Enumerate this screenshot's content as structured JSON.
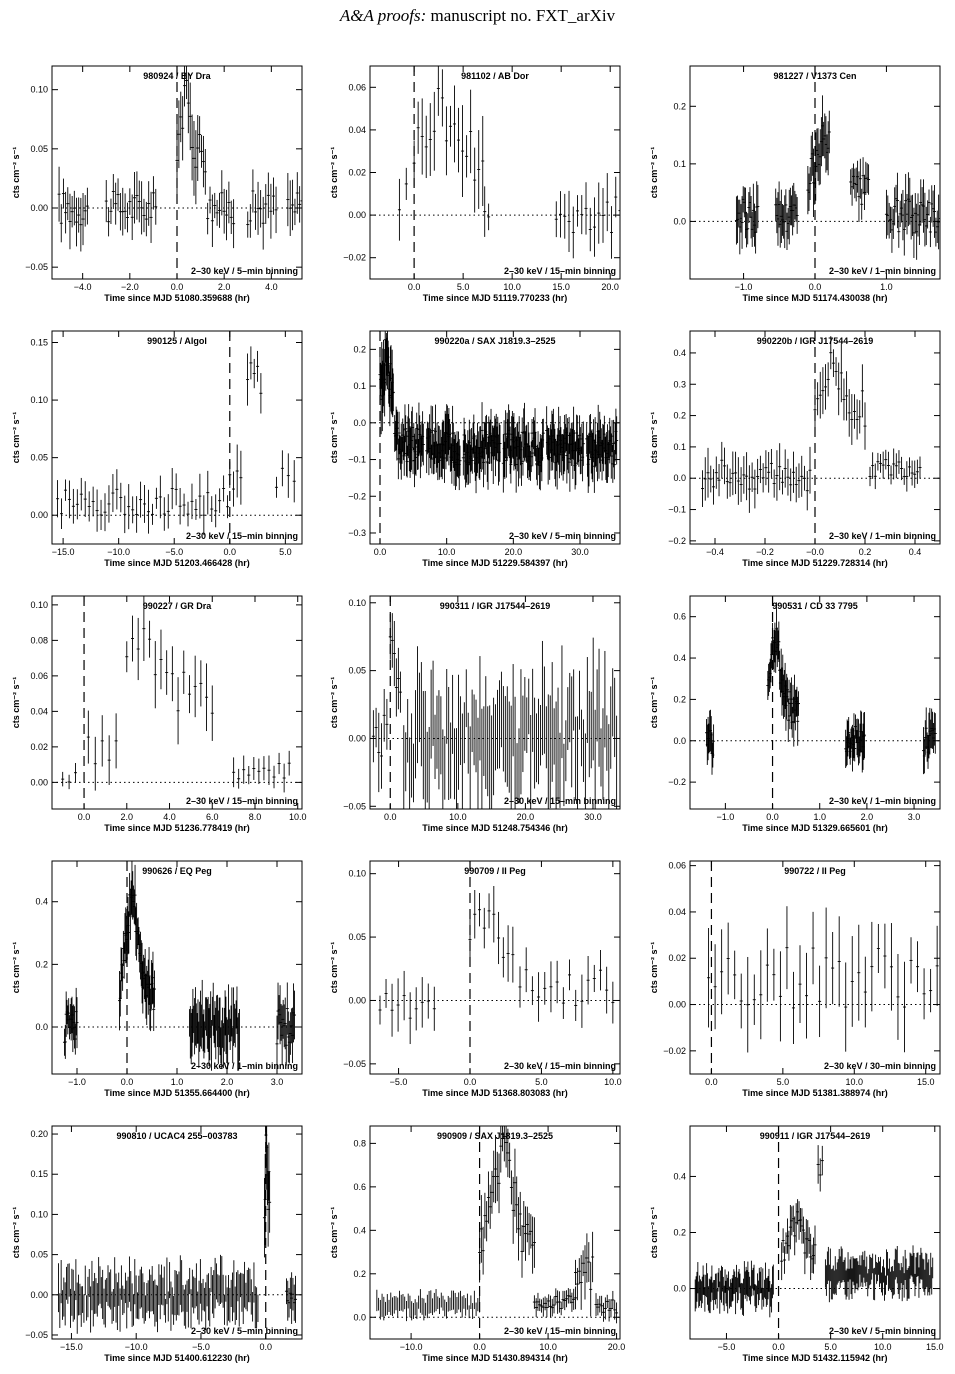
{
  "header": {
    "italic": "A&A proofs:",
    "rest": " manuscript no. FXT_arXiv"
  },
  "chart_data": [
    {
      "type": "line",
      "title": "980924 / BY Dra",
      "xlabel": "Time since MJD 51080.359688 (hr)",
      "ylabel": "cts cm⁻² s⁻¹",
      "band": "2–30 keV / 5–min binning",
      "xlim": [
        -5.3,
        5.3
      ],
      "ylim": [
        -0.06,
        0.12
      ],
      "xticks": [
        -4,
        -2,
        0,
        2,
        4
      ],
      "xtick_labels": [
        "−4.0",
        "−2.0",
        "0.0",
        "2.0",
        "4.0"
      ],
      "yticks": [
        -0.05,
        0,
        0.05,
        0.1
      ],
      "ytick_labels": [
        "−0.05",
        "0.00",
        "0.05",
        "0.10"
      ],
      "vline": 0,
      "hline": 0,
      "segments": [
        {
          "x0": -5.0,
          "x1": -3.8,
          "n": 14,
          "lvl": 0.0,
          "amp": 0.015
        },
        {
          "x0": -3.0,
          "x1": -1.7,
          "n": 14,
          "lvl": 0.0,
          "amp": 0.014
        },
        {
          "x0": -1.6,
          "x1": -0.9,
          "n": 8,
          "lvl": 0.0,
          "amp": 0.014
        },
        {
          "x0": 0.0,
          "x1": 1.2,
          "n": 16,
          "lvl": 0.05,
          "amp": 0.02,
          "peak": [
            0.35,
            0.09
          ]
        },
        {
          "x0": 1.3,
          "x1": 2.4,
          "n": 12,
          "lvl": 0.0,
          "amp": 0.014
        },
        {
          "x0": 3.0,
          "x1": 4.2,
          "n": 12,
          "lvl": 0.0,
          "amp": 0.015
        },
        {
          "x0": 4.7,
          "x1": 5.3,
          "n": 7,
          "lvl": 0.0,
          "amp": 0.015
        }
      ]
    },
    {
      "type": "line",
      "title": "981102 / AB Dor",
      "xlabel": "Time since MJD 51119.770233 (hr)",
      "ylabel": "cts cm⁻² s⁻¹",
      "band": "2–30 keV / 15–min binning",
      "xlim": [
        -4.5,
        21
      ],
      "ylim": [
        -0.03,
        0.07
      ],
      "xticks": [
        0,
        5,
        10,
        15,
        20
      ],
      "xtick_labels": [
        "0.0",
        "5.0",
        "10.0",
        "15.0",
        "20.0"
      ],
      "yticks": [
        -0.02,
        0,
        0.02,
        0.04,
        0.06
      ],
      "ytick_labels": [
        "−0.02",
        "0.00",
        "0.02",
        "0.04",
        "0.06"
      ],
      "vline": 0,
      "hline": 0,
      "segments": [
        {
          "x0": -1.5,
          "x1": -0.8,
          "n": 2,
          "lvl": 0.01,
          "amp": 0.01
        },
        {
          "x0": 0.0,
          "x1": 7.0,
          "n": 18,
          "lvl": 0.03,
          "amp": 0.014,
          "peak": [
            2.6,
            0.05
          ]
        },
        {
          "x0": 7.2,
          "x1": 7.6,
          "n": 2,
          "lvl": 0.0,
          "amp": 0.008
        },
        {
          "x0": 14.5,
          "x1": 21.0,
          "n": 16,
          "lvl": 0.0,
          "amp": 0.01
        }
      ]
    },
    {
      "type": "line",
      "title": "981227 / V1373 Cen",
      "xlabel": "Time since MJD 51174.430038 (hr)",
      "ylabel": "cts cm⁻² s⁻¹",
      "band": "2–30 keV / 1–min binning",
      "xlim": [
        -1.75,
        1.75
      ],
      "ylim": [
        -0.1,
        0.27
      ],
      "xticks": [
        -1,
        0,
        1
      ],
      "xtick_labels": [
        "−1.0",
        "0.0",
        "1.0"
      ],
      "yticks": [
        0,
        0.1,
        0.2
      ],
      "ytick_labels": [
        "0.0",
        "0.1",
        "0.2"
      ],
      "vline": 0,
      "hline": 0,
      "segments": [
        {
          "x0": -1.1,
          "x1": -0.8,
          "n": 20,
          "lvl": 0.01,
          "amp": 0.03
        },
        {
          "x0": -0.55,
          "x1": -0.25,
          "n": 20,
          "lvl": 0.01,
          "amp": 0.03
        },
        {
          "x0": -0.1,
          "x1": 0.2,
          "n": 20,
          "lvl": 0.09,
          "amp": 0.04,
          "peak": [
            0.15,
            0.15
          ]
        },
        {
          "x0": 0.5,
          "x1": 0.75,
          "n": 14,
          "lvl": 0.05,
          "amp": 0.03
        },
        {
          "x0": 1.0,
          "x1": 1.75,
          "n": 40,
          "lvl": 0.01,
          "amp": 0.03
        }
      ]
    },
    {
      "type": "line",
      "title": "990125 / Algol",
      "xlabel": "Time since MJD 51203.466428 (hr)",
      "ylabel": "cts cm⁻² s⁻¹",
      "band": "2–30 keV / 15–min binning",
      "xlim": [
        -16,
        6.5
      ],
      "ylim": [
        -0.025,
        0.16
      ],
      "xticks": [
        -15,
        -10,
        -5,
        0,
        5
      ],
      "xtick_labels": [
        "−15.0",
        "−10.0",
        "−5.0",
        "0.0",
        "5.0"
      ],
      "yticks": [
        0,
        0.05,
        0.1,
        0.15
      ],
      "ytick_labels": [
        "0.00",
        "0.05",
        "0.10",
        "0.15"
      ],
      "vline": 0,
      "hline": 0,
      "segments": [
        {
          "x0": -15.5,
          "x1": -0.2,
          "n": 44,
          "lvl": 0.012,
          "amp": 0.012
        },
        {
          "x0": 0.0,
          "x1": 1.0,
          "n": 4,
          "lvl": 0.03,
          "amp": 0.015
        },
        {
          "x0": 1.6,
          "x1": 2.8,
          "n": 5,
          "lvl": 0.12,
          "amp": 0.015
        },
        {
          "x0": 4.2,
          "x1": 5.8,
          "n": 4,
          "lvl": 0.035,
          "amp": 0.012
        }
      ]
    },
    {
      "type": "line",
      "title": "990220a / SAX J1819.3–2525",
      "xlabel": "Time since MJD 51229.584397 (hr)",
      "ylabel": "cts cm⁻² s⁻¹",
      "band": "2–30 keV / 5–min binning",
      "xlim": [
        -1.5,
        36
      ],
      "ylim": [
        -0.33,
        0.25
      ],
      "xticks": [
        0,
        10,
        20,
        30
      ],
      "xtick_labels": [
        "0.0",
        "10.0",
        "20.0",
        "30.0"
      ],
      "yticks": [
        -0.3,
        -0.2,
        -0.1,
        0,
        0.1,
        0.2
      ],
      "ytick_labels": [
        "−0.3",
        "−0.2",
        "−0.1",
        "0.0",
        "0.1",
        "0.2"
      ],
      "vline": 0,
      "hline": 0,
      "segments": [
        {
          "x0": 0.0,
          "x1": 2.0,
          "n": 24,
          "lvl": 0.09,
          "amp": 0.06,
          "peak": [
            1.0,
            0.2
          ]
        },
        {
          "x0": 2.2,
          "x1": 6.5,
          "n": 40,
          "lvl": -0.06,
          "amp": 0.05
        },
        {
          "x0": 7.0,
          "x1": 12.0,
          "n": 46,
          "lvl": -0.07,
          "amp": 0.05
        },
        {
          "x0": 12.5,
          "x1": 18.0,
          "n": 50,
          "lvl": -0.07,
          "amp": 0.05
        },
        {
          "x0": 18.5,
          "x1": 24.5,
          "n": 54,
          "lvl": -0.07,
          "amp": 0.05
        },
        {
          "x0": 25.0,
          "x1": 30.5,
          "n": 50,
          "lvl": -0.07,
          "amp": 0.05
        },
        {
          "x0": 31.0,
          "x1": 35.5,
          "n": 40,
          "lvl": -0.07,
          "amp": 0.05
        }
      ]
    },
    {
      "type": "line",
      "title": "990220b / IGR J17544–2619",
      "xlabel": "Time since MJD 51229.728314 (hr)",
      "ylabel": "cts cm⁻² s⁻¹",
      "band": "2–30 keV / 1–min binning",
      "xlim": [
        -0.5,
        0.5
      ],
      "ylim": [
        -0.21,
        0.47
      ],
      "xticks": [
        -0.4,
        -0.2,
        0,
        0.2,
        0.4
      ],
      "xtick_labels": [
        "−0.4",
        "−0.2",
        "−0.0",
        "0.2",
        "0.4"
      ],
      "yticks": [
        -0.2,
        -0.1,
        0,
        0.1,
        0.2,
        0.3,
        0.4
      ],
      "ytick_labels": [
        "−0.2",
        "−0.1",
        "0.0",
        "0.1",
        "0.2",
        "0.3",
        "0.4"
      ],
      "vline": 0,
      "hline": 0,
      "segments": [
        {
          "x0": -0.45,
          "x1": -0.02,
          "n": 40,
          "lvl": 0.01,
          "amp": 0.05
        },
        {
          "x0": 0.0,
          "x1": 0.2,
          "n": 20,
          "lvl": 0.22,
          "amp": 0.06,
          "peak": [
            0.07,
            0.35
          ]
        },
        {
          "x0": 0.22,
          "x1": 0.42,
          "n": 20,
          "lvl": 0.03,
          "amp": 0.03
        }
      ]
    },
    {
      "type": "line",
      "title": "990227 / GR Dra",
      "xlabel": "Time since MJD 51236.778419 (hr)",
      "ylabel": "cts cm⁻² s⁻¹",
      "band": "2–30 keV / 15–min binning",
      "xlim": [
        -1.5,
        10.2
      ],
      "ylim": [
        -0.015,
        0.105
      ],
      "xticks": [
        0,
        2,
        4,
        6,
        8,
        10
      ],
      "xtick_labels": [
        "0.0",
        "2.0",
        "4.0",
        "6.0",
        "8.0",
        "10.0"
      ],
      "yticks": [
        0,
        0.02,
        0.04,
        0.06,
        0.08,
        0.1
      ],
      "ytick_labels": [
        "0.00",
        "0.02",
        "0.04",
        "0.06",
        "0.08",
        "0.10"
      ],
      "vline": 0,
      "hline": 0,
      "segments": [
        {
          "x0": -1.0,
          "x1": -0.4,
          "n": 3,
          "lvl": 0.003,
          "amp": 0.003
        },
        {
          "x0": 0.2,
          "x1": 1.5,
          "n": 5,
          "lvl": 0.02,
          "amp": 0.01
        },
        {
          "x0": 2.0,
          "x1": 6.0,
          "n": 16,
          "lvl": 0.05,
          "amp": 0.012,
          "peak": [
            2.6,
            0.08
          ]
        },
        {
          "x0": 7.0,
          "x1": 9.6,
          "n": 12,
          "lvl": 0.007,
          "amp": 0.005
        }
      ]
    },
    {
      "type": "line",
      "title": "990311 / IGR J17544–2619",
      "xlabel": "Time since MJD 51248.754346 (hr)",
      "ylabel": "cts cm⁻² s⁻¹",
      "band": "2–30 keV / 15–min binning",
      "xlim": [
        -3,
        34
      ],
      "ylim": [
        -0.052,
        0.105
      ],
      "xticks": [
        0,
        10,
        20,
        30
      ],
      "xtick_labels": [
        "0.0",
        "10.0",
        "20.0",
        "30.0"
      ],
      "yticks": [
        -0.05,
        0,
        0.05,
        0.1
      ],
      "ytick_labels": [
        "−0.05",
        "0.00",
        "0.05",
        "0.10"
      ],
      "vline": 0,
      "hline": 0,
      "segments": [
        {
          "x0": -2.5,
          "x1": -0.5,
          "n": 6,
          "lvl": 0.0,
          "amp": 0.02
        },
        {
          "x0": 0.0,
          "x1": 1.5,
          "n": 6,
          "lvl": 0.05,
          "amp": 0.02,
          "peak": [
            0.4,
            0.08
          ]
        },
        {
          "x0": 2.0,
          "x1": 33.5,
          "n": 110,
          "lvl": 0.0,
          "amp": 0.03
        }
      ]
    },
    {
      "type": "line",
      "title": "990531 / CD 33 7795",
      "xlabel": "Time since MJD 51329.665601 (hr)",
      "ylabel": "cts cm⁻² s⁻¹",
      "band": "2–30 keV / 1–min binning",
      "xlim": [
        -1.75,
        3.55
      ],
      "ylim": [
        -0.33,
        0.7
      ],
      "xticks": [
        -1,
        0,
        1,
        2,
        3
      ],
      "xtick_labels": [
        "−1.0",
        "0.0",
        "1.0",
        "2.0",
        "3.0"
      ],
      "yticks": [
        -0.2,
        0,
        0.2,
        0.4,
        0.6
      ],
      "ytick_labels": [
        "−0.2",
        "0.0",
        "0.2",
        "0.4",
        "0.6"
      ],
      "vline": 0,
      "hline": 0,
      "segments": [
        {
          "x0": -1.4,
          "x1": -1.25,
          "n": 10,
          "lvl": 0.0,
          "amp": 0.07
        },
        {
          "x0": -0.1,
          "x1": 0.55,
          "n": 40,
          "lvl": 0.15,
          "amp": 0.08,
          "peak": [
            0.05,
            0.5
          ]
        },
        {
          "x0": 1.55,
          "x1": 1.95,
          "n": 26,
          "lvl": 0.0,
          "amp": 0.07
        },
        {
          "x0": 3.2,
          "x1": 3.45,
          "n": 14,
          "lvl": 0.0,
          "amp": 0.08
        }
      ]
    },
    {
      "type": "line",
      "title": "990626 / EQ Peg",
      "xlabel": "Time since MJD 51355.664400 (hr)",
      "ylabel": "cts cm⁻² s⁻¹",
      "band": "2–30 keV / 1–min binning",
      "xlim": [
        -1.5,
        3.5
      ],
      "ylim": [
        -0.15,
        0.53
      ],
      "xticks": [
        -1,
        0,
        1,
        2,
        3
      ],
      "xtick_labels": [
        "−1.0",
        "0.0",
        "1.0",
        "2.0",
        "3.0"
      ],
      "yticks": [
        0,
        0.2,
        0.4
      ],
      "ytick_labels": [
        "0.0",
        "0.2",
        "0.4"
      ],
      "vline": 0,
      "hline": 0,
      "segments": [
        {
          "x0": -1.25,
          "x1": -1.0,
          "n": 16,
          "lvl": 0.0,
          "amp": 0.05
        },
        {
          "x0": -0.15,
          "x1": 0.55,
          "n": 46,
          "lvl": 0.1,
          "amp": 0.06,
          "peak": [
            0.1,
            0.4
          ]
        },
        {
          "x0": 1.25,
          "x1": 2.25,
          "n": 60,
          "lvl": 0.0,
          "amp": 0.06
        },
        {
          "x0": 3.0,
          "x1": 3.35,
          "n": 18,
          "lvl": 0.0,
          "amp": 0.06
        }
      ]
    },
    {
      "type": "line",
      "title": "990709 / II Peg",
      "xlabel": "Time since MJD 51368.803083 (hr)",
      "ylabel": "cts cm⁻² s⁻¹",
      "band": "2–30 keV / 15–min binning",
      "xlim": [
        -7,
        10.5
      ],
      "ylim": [
        -0.058,
        0.11
      ],
      "xticks": [
        -5,
        0,
        5,
        10
      ],
      "xtick_labels": [
        "−5.0",
        "0.0",
        "5.0",
        "10.0"
      ],
      "yticks": [
        -0.05,
        0,
        0.05,
        0.1
      ],
      "ytick_labels": [
        "−0.05",
        "0.00",
        "0.05",
        "0.10"
      ],
      "vline": 0,
      "hline": 0,
      "segments": [
        {
          "x0": -6.3,
          "x1": -2.5,
          "n": 10,
          "lvl": 0.0,
          "amp": 0.015
        },
        {
          "x0": 0.0,
          "x1": 3.0,
          "n": 10,
          "lvl": 0.045,
          "amp": 0.015,
          "peak": [
            1.0,
            0.07
          ]
        },
        {
          "x0": 3.5,
          "x1": 10.0,
          "n": 16,
          "lvl": 0.01,
          "amp": 0.015
        }
      ]
    },
    {
      "type": "line",
      "title": "990722 / II Peg",
      "xlabel": "Time since MJD 51381.388974 (hr)",
      "ylabel": "cts cm⁻² s⁻¹",
      "band": "2–30 keV / 30–min binning",
      "xlim": [
        -1.5,
        16
      ],
      "ylim": [
        -0.03,
        0.062
      ],
      "xticks": [
        0,
        5,
        10,
        15
      ],
      "xtick_labels": [
        "0.0",
        "5.0",
        "10.0",
        "15.0"
      ],
      "yticks": [
        -0.02,
        0,
        0.02,
        0.04,
        0.06
      ],
      "ytick_labels": [
        "−0.02",
        "0.00",
        "0.02",
        "0.04",
        "0.06"
      ],
      "vline": 0,
      "hline": 0,
      "segments": [
        {
          "x0": -0.2,
          "x1": 15.8,
          "n": 36,
          "lvl": 0.012,
          "amp": 0.014
        }
      ]
    },
    {
      "type": "line",
      "title": "990810 / UCAC4 255–003783",
      "xlabel": "Time since MJD 51400.612230 (hr)",
      "ylabel": "cts cm⁻² s⁻¹",
      "band": "2–30 keV / 5–min binning",
      "xlim": [
        -16.5,
        2.8
      ],
      "ylim": [
        -0.055,
        0.21
      ],
      "xticks": [
        -15,
        -10,
        -5,
        0
      ],
      "xtick_labels": [
        "−15.0",
        "−10.0",
        "−5.0",
        "0.0"
      ],
      "yticks": [
        -0.05,
        0,
        0.05,
        0.1,
        0.15,
        0.2
      ],
      "ytick_labels": [
        "−0.05",
        "0.00",
        "0.05",
        "0.10",
        "0.15",
        "0.20"
      ],
      "vline": 0,
      "hline": 0,
      "segments": [
        {
          "x0": -16.0,
          "x1": -0.6,
          "n": 150,
          "lvl": 0.0,
          "amp": 0.02
        },
        {
          "x0": -0.1,
          "x1": 0.3,
          "n": 8,
          "lvl": 0.13,
          "amp": 0.04,
          "peak": [
            0.05,
            0.19
          ]
        },
        {
          "x0": 1.6,
          "x1": 2.3,
          "n": 8,
          "lvl": 0.0,
          "amp": 0.02
        }
      ]
    },
    {
      "type": "line",
      "title": "990909 / SAX J1819.3–2525",
      "xlabel": "Time since MJD 51430.894314 (hr)",
      "ylabel": "cts cm⁻² s⁻¹",
      "band": "2–30 keV / 15–min binning",
      "xlim": [
        -16,
        20.5
      ],
      "ylim": [
        -0.1,
        0.88
      ],
      "xticks": [
        -10,
        0,
        10,
        20
      ],
      "xtick_labels": [
        "−10.0",
        "0.0",
        "10.0",
        "20.0"
      ],
      "yticks": [
        0,
        0.2,
        0.4,
        0.6,
        0.8
      ],
      "ytick_labels": [
        "0.0",
        "0.2",
        "0.4",
        "0.6",
        "0.8"
      ],
      "vline": 0,
      "hline": 0,
      "segments": [
        {
          "x0": -15.0,
          "x1": 0.0,
          "n": 60,
          "lvl": 0.05,
          "amp": 0.03
        },
        {
          "x0": 0.0,
          "x1": 8.0,
          "n": 32,
          "lvl": 0.35,
          "amp": 0.1,
          "peak": [
            3.5,
            0.75
          ]
        },
        {
          "x0": 8.0,
          "x1": 14.0,
          "n": 24,
          "lvl": 0.07,
          "amp": 0.03
        },
        {
          "x0": 14.0,
          "x1": 16.5,
          "n": 10,
          "lvl": 0.2,
          "amp": 0.08
        },
        {
          "x0": 17.0,
          "x1": 20.0,
          "n": 12,
          "lvl": 0.05,
          "amp": 0.03
        }
      ]
    },
    {
      "type": "line",
      "title": "990911 / IGR J17544–2619",
      "xlabel": "Time since MJD 51432.115942 (hr)",
      "ylabel": "cts cm⁻² s⁻¹",
      "band": "2–30 keV / 5–min binning",
      "xlim": [
        -8.5,
        15.5
      ],
      "ylim": [
        -0.18,
        0.58
      ],
      "xticks": [
        -5,
        0,
        5,
        10,
        15
      ],
      "xtick_labels": [
        "−5.0",
        "0.0",
        "5.0",
        "10.0",
        "15.0"
      ],
      "yticks": [
        0,
        0.2,
        0.4
      ],
      "ytick_labels": [
        "0.0",
        "0.2",
        "0.4"
      ],
      "vline": 0,
      "hline": 0,
      "segments": [
        {
          "x0": -8.0,
          "x1": -0.5,
          "n": 90,
          "lvl": 0.0,
          "amp": 0.04
        },
        {
          "x0": 0.3,
          "x1": 3.5,
          "n": 24,
          "lvl": 0.12,
          "amp": 0.05,
          "peak": [
            1.8,
            0.24
          ]
        },
        {
          "x0": 3.8,
          "x1": 4.2,
          "n": 3,
          "lvl": 0.45,
          "amp": 0.06
        },
        {
          "x0": 4.5,
          "x1": 14.8,
          "n": 110,
          "lvl": 0.05,
          "amp": 0.04
        }
      ]
    }
  ]
}
